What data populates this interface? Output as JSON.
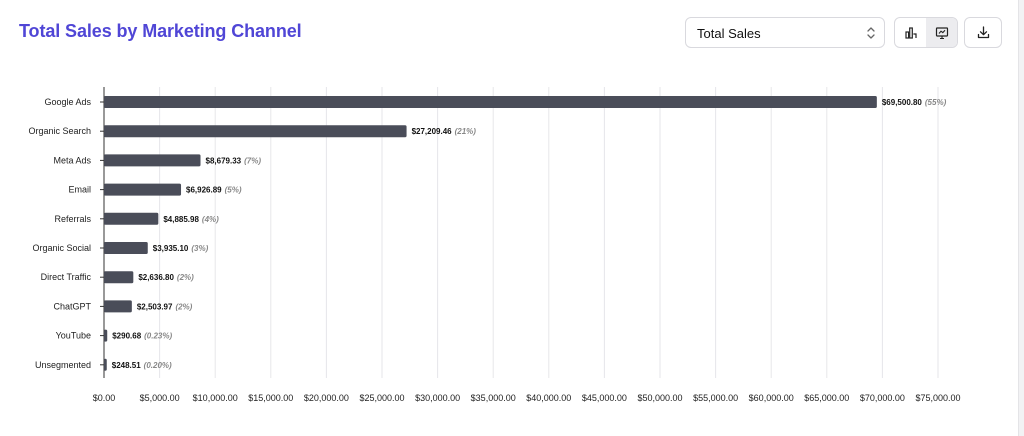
{
  "header": {
    "title": "Total Sales by Marketing Channel",
    "metric_select": {
      "selected": "Total Sales"
    },
    "icons": {
      "bar_chart": "bar-chart-icon",
      "presentation": "presentation-chart-icon",
      "download": "download-icon"
    }
  },
  "colors": {
    "title": "#5046d6",
    "bar": "#4a4d59",
    "grid": "#e6e6ea"
  },
  "chart_data": {
    "type": "bar",
    "orientation": "horizontal",
    "title": "Total Sales by Marketing Channel",
    "categories": [
      "Google Ads",
      "Organic Search",
      "Meta Ads",
      "Email",
      "Referrals",
      "Organic Social",
      "Direct Traffic",
      "ChatGPT",
      "YouTube",
      "Unsegmented"
    ],
    "values": [
      69500.8,
      27209.46,
      8679.33,
      6926.89,
      4885.98,
      3935.1,
      2636.8,
      2503.97,
      290.68,
      248.51
    ],
    "value_labels": [
      "$69,500.80",
      "$27,209.46",
      "$8,679.33",
      "$6,926.89",
      "$4,885.98",
      "$3,935.10",
      "$2,636.80",
      "$2,503.97",
      "$290.68",
      "$248.51"
    ],
    "percent_labels": [
      "(55%)",
      "(21%)",
      "(7%)",
      "(5%)",
      "(4%)",
      "(3%)",
      "(2%)",
      "(2%)",
      "(0.23%)",
      "(0.20%)"
    ],
    "xlim": [
      0,
      75000
    ],
    "x_ticks": [
      0,
      5000,
      10000,
      15000,
      20000,
      25000,
      30000,
      35000,
      40000,
      45000,
      50000,
      55000,
      60000,
      65000,
      70000,
      75000
    ],
    "x_tick_labels": [
      "$0.00",
      "$5,000.00",
      "$10,000.00",
      "$15,000.00",
      "$20,000.00",
      "$25,000.00",
      "$30,000.00",
      "$35,000.00",
      "$40,000.00",
      "$45,000.00",
      "$50,000.00",
      "$55,000.00",
      "$60,000.00",
      "$65,000.00",
      "$70,000.00",
      "$75,000.00"
    ],
    "grid": true,
    "legend": false
  }
}
